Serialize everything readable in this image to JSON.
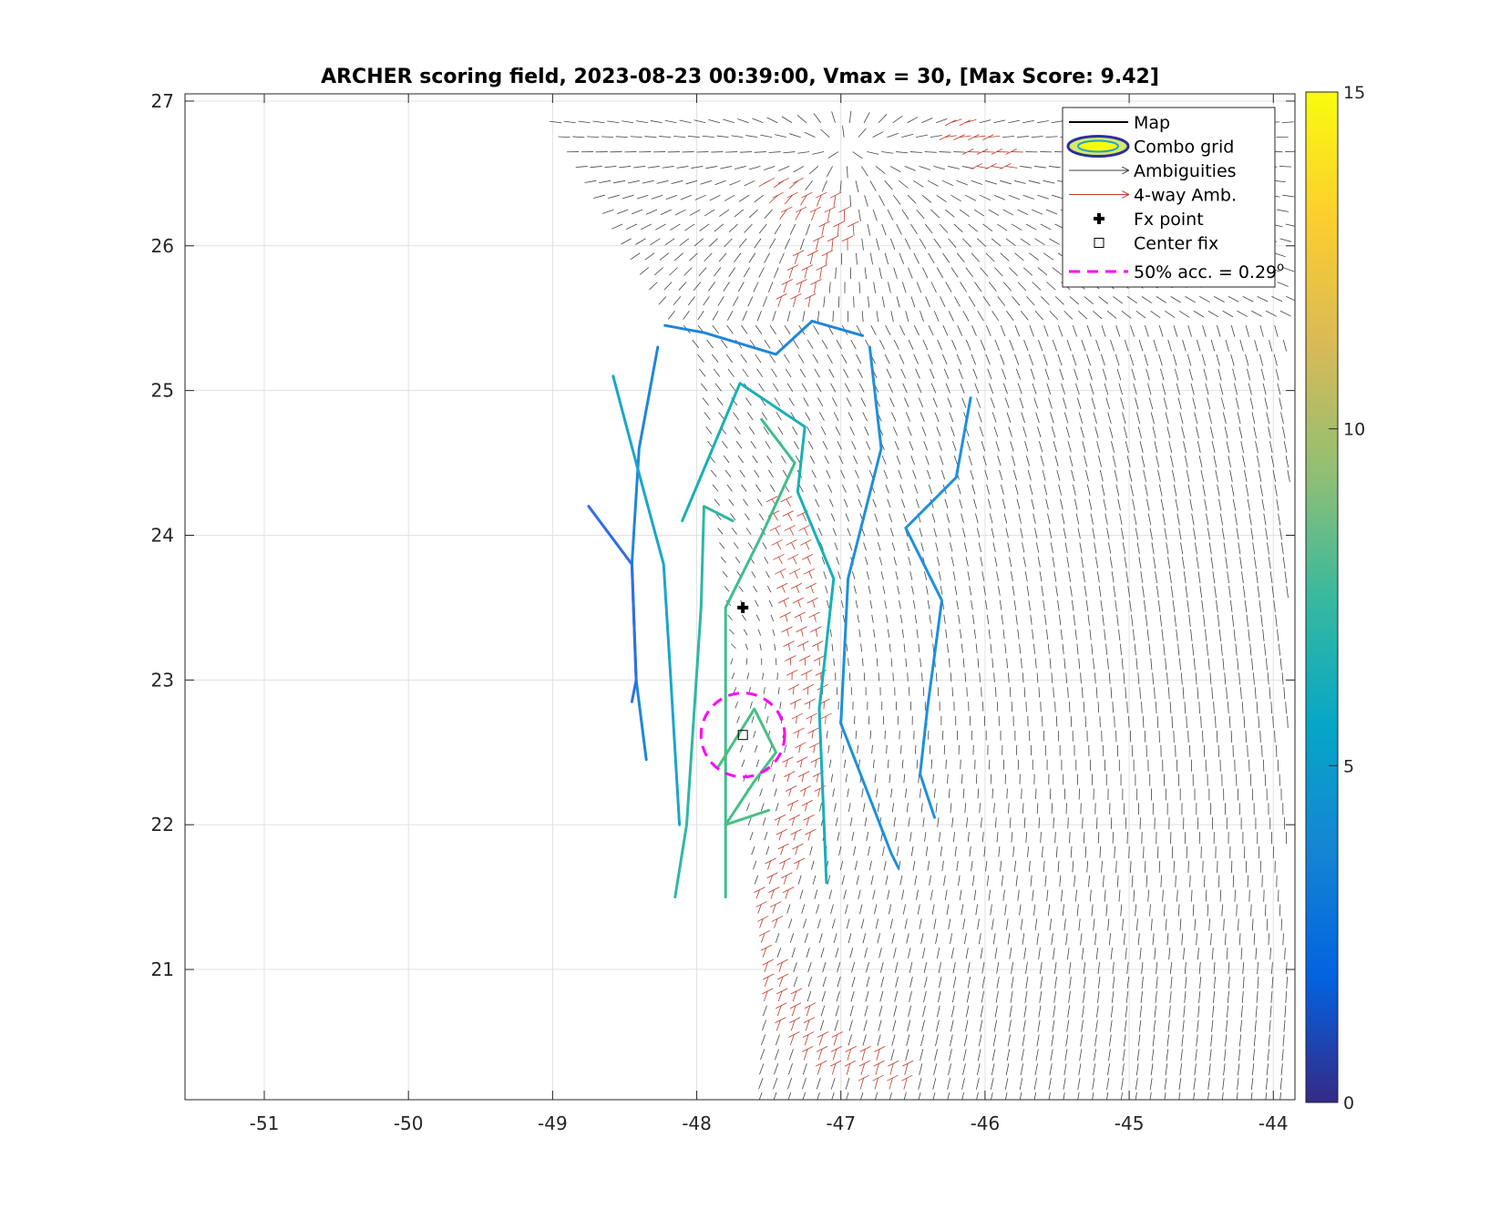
{
  "chart_data": {
    "type": "scatter",
    "title": "ARCHER scoring field, 2023-08-23 00:39:00, Vmax = 30, [Max Score: 9.42]",
    "xlabel": "",
    "ylabel": "",
    "xlim": [
      -51.55,
      -43.85
    ],
    "ylim": [
      20.1,
      27.05
    ],
    "x_ticks": [
      -51,
      -50,
      -49,
      -48,
      -47,
      -46,
      -45,
      -44
    ],
    "x_tick_labels": [
      "-51",
      "-50",
      "-49",
      "-48",
      "-47",
      "-46",
      "-45",
      "-44"
    ],
    "y_ticks": [
      21,
      22,
      23,
      24,
      25,
      26,
      27
    ],
    "y_tick_labels": [
      "21",
      "22",
      "23",
      "24",
      "25",
      "26",
      "27"
    ],
    "grid": true,
    "colorbar": {
      "range": [
        0,
        15
      ],
      "ticks": [
        0,
        5,
        10,
        15
      ],
      "tick_labels": [
        "0",
        "5",
        "10",
        "15"
      ],
      "colormap": "parula",
      "stops": [
        "#352a87",
        "#0363e1",
        "#1485d4",
        "#06a7c6",
        "#38b99e",
        "#92bf73",
        "#d9ba56",
        "#fcce2e",
        "#f9fb0e"
      ]
    },
    "legend": {
      "location": "top-right",
      "entries": [
        {
          "label": "Map",
          "kind": "line",
          "color": "#000000"
        },
        {
          "label": "Combo grid",
          "kind": "ellipse",
          "color": "#2c2f9e"
        },
        {
          "label": "Ambiguities",
          "kind": "arrow",
          "color": "#404040"
        },
        {
          "label": "4-way Amb.",
          "kind": "arrow",
          "color": "#c0392b"
        },
        {
          "label": "Fx point",
          "kind": "plus",
          "color": "#000000"
        },
        {
          "label": "Center fix",
          "kind": "square",
          "color": "#000000"
        },
        {
          "label": "50% acc. = 0.29",
          "superscript": "o",
          "kind": "dashed",
          "color": "#ff00ff"
        }
      ]
    },
    "fx_point": {
      "x": -47.68,
      "y": 23.5
    },
    "center_fix": {
      "x": -47.68,
      "y": 22.62
    },
    "accuracy_circle": {
      "x": -47.68,
      "y": 22.62,
      "radius_deg": 0.29,
      "color": "#ff00ff"
    },
    "swath": {
      "left_edge": [
        [
          -49.0,
          26.95
        ],
        [
          -48.0,
          25.3
        ],
        [
          -47.5,
          21.0
        ],
        [
          -47.55,
          20.1
        ]
      ],
      "right_edge": -43.9,
      "top": 26.95
    },
    "four_way_regions": [
      {
        "points": [
          [
            -47.4,
            26.4
          ],
          [
            -47.0,
            26.2
          ],
          [
            -47.3,
            25.7
          ]
        ]
      },
      {
        "points": [
          [
            -46.2,
            26.8
          ],
          [
            -45.9,
            26.6
          ]
        ]
      },
      {
        "points": [
          [
            -47.4,
            24.2
          ],
          [
            -47.2,
            23.0
          ],
          [
            -47.3,
            22.0
          ],
          [
            -47.6,
            21.2
          ],
          [
            -47.2,
            20.5
          ],
          [
            -46.6,
            20.3
          ]
        ]
      }
    ],
    "contours": [
      {
        "level": 5.0,
        "color": "#1f86d8",
        "points": [
          [
            -48.27,
            25.3
          ],
          [
            -48.4,
            24.6
          ],
          [
            -48.45,
            23.8
          ],
          [
            -48.42,
            23.0
          ],
          [
            -48.35,
            22.45
          ]
        ]
      },
      {
        "level": 5.0,
        "color": "#1f86d8",
        "points": [
          [
            -48.22,
            25.45
          ],
          [
            -47.95,
            25.4
          ],
          [
            -47.45,
            25.25
          ],
          [
            -47.2,
            25.48
          ],
          [
            -46.85,
            25.38
          ]
        ]
      },
      {
        "level": 5.3,
        "color": "#1e8fdc",
        "points": [
          [
            -46.8,
            25.3
          ],
          [
            -46.72,
            24.6
          ],
          [
            -46.95,
            23.7
          ],
          [
            -47.0,
            22.7
          ],
          [
            -46.65,
            21.8
          ],
          [
            -46.6,
            21.7
          ]
        ]
      },
      {
        "level": 5.3,
        "color": "#1e8fdc",
        "points": [
          [
            -46.1,
            24.95
          ],
          [
            -46.2,
            24.4
          ],
          [
            -46.55,
            24.05
          ],
          [
            -46.3,
            23.55
          ],
          [
            -46.4,
            22.8
          ],
          [
            -46.45,
            22.35
          ],
          [
            -46.35,
            22.05
          ]
        ]
      },
      {
        "level": 4.3,
        "color": "#2f6ee6",
        "points": [
          [
            -48.75,
            24.2
          ],
          [
            -48.45,
            23.8
          ],
          [
            -48.42,
            23.0
          ],
          [
            -48.45,
            22.85
          ]
        ]
      },
      {
        "level": 6.6,
        "color": "#1aa6c9",
        "points": [
          [
            -48.58,
            25.1
          ],
          [
            -48.42,
            24.5
          ],
          [
            -48.23,
            23.8
          ],
          [
            -48.18,
            23.0
          ],
          [
            -48.12,
            22.0
          ]
        ]
      },
      {
        "level": 7.0,
        "color": "#17b0b6",
        "points": [
          [
            -48.1,
            24.1
          ],
          [
            -47.7,
            25.05
          ],
          [
            -47.25,
            24.75
          ],
          [
            -47.3,
            24.3
          ],
          [
            -47.05,
            23.7
          ],
          [
            -47.15,
            22.8
          ],
          [
            -47.1,
            21.6
          ]
        ]
      },
      {
        "level": 8.1,
        "color": "#2fb7a3",
        "points": [
          [
            -48.15,
            21.5
          ],
          [
            -48.07,
            22.0
          ],
          [
            -47.97,
            23.5
          ],
          [
            -47.95,
            24.2
          ],
          [
            -47.75,
            24.1
          ]
        ]
      },
      {
        "level": 8.6,
        "color": "#3ebd8d",
        "points": [
          [
            -47.8,
            21.5
          ],
          [
            -47.8,
            22.5
          ],
          [
            -47.8,
            23.5
          ],
          [
            -47.55,
            24.0
          ],
          [
            -47.32,
            24.5
          ],
          [
            -47.55,
            24.8
          ]
        ]
      },
      {
        "level": 9.0,
        "color": "#47c083",
        "points": [
          [
            -47.85,
            22.4
          ],
          [
            -47.6,
            22.8
          ],
          [
            -47.45,
            22.5
          ],
          [
            -47.6,
            22.3
          ],
          [
            -47.8,
            22.0
          ],
          [
            -47.5,
            22.1
          ]
        ]
      }
    ]
  }
}
